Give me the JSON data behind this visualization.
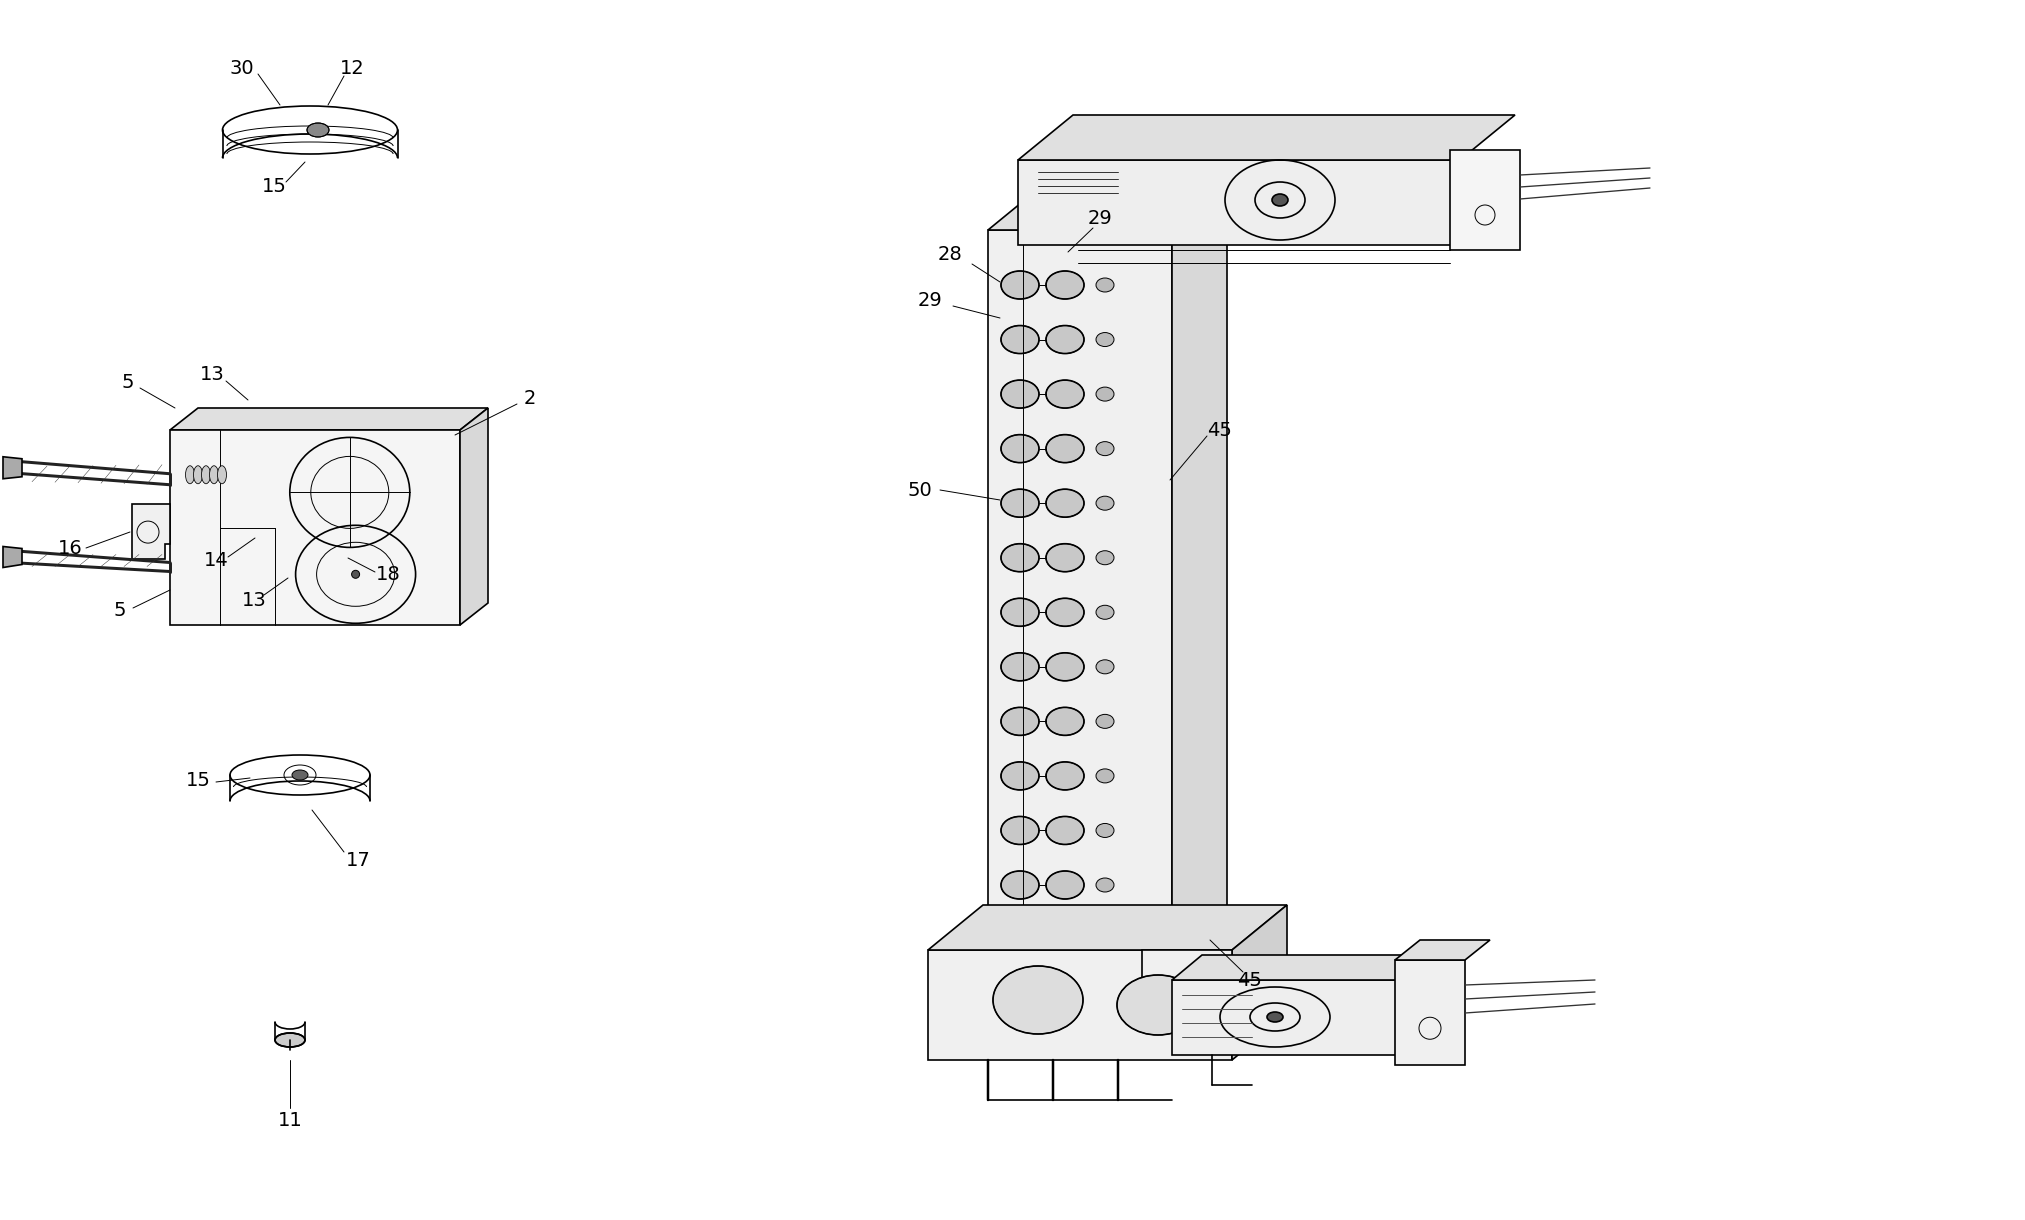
{
  "bg_color": "#ffffff",
  "lc": "#000000",
  "tc": "#000000",
  "fw": 20.25,
  "fh": 12.2,
  "lw": 1.2,
  "lw_thin": 0.7
}
